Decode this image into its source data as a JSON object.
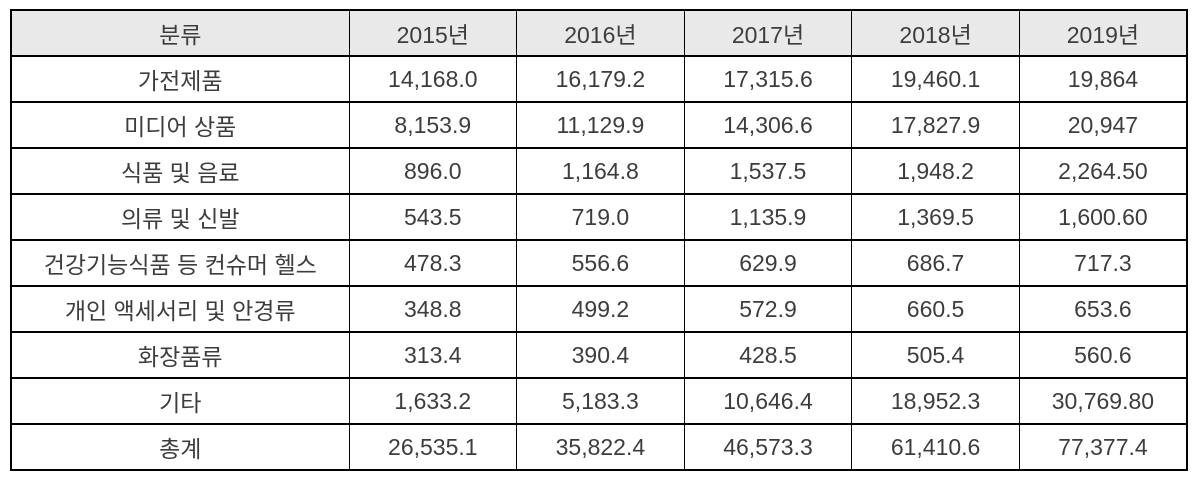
{
  "colors": {
    "header_bg": "#e9e9e9",
    "grid_border": "#000000",
    "text": "#3d3d3d",
    "page_bg": "#ffffff"
  },
  "table": {
    "header": [
      "분류",
      "2015년",
      "2016년",
      "2017년",
      "2018년",
      "2019년"
    ],
    "rows": [
      [
        "가전제품",
        "14,168.0",
        "16,179.2",
        "17,315.6",
        "19,460.1",
        "19,864"
      ],
      [
        "미디어 상품",
        "8,153.9",
        "11,129.9",
        "14,306.6",
        "17,827.9",
        "20,947"
      ],
      [
        "식품 및 음료",
        "896.0",
        "1,164.8",
        "1,537.5",
        "1,948.2",
        "2,264.50"
      ],
      [
        "의류 및 신발",
        "543.5",
        "719.0",
        "1,135.9",
        "1,369.5",
        "1,600.60"
      ],
      [
        "건강기능식품 등 컨슈머 헬스",
        "478.3",
        "556.6",
        "629.9",
        "686.7",
        "717.3"
      ],
      [
        "개인 액세서리 및 안경류",
        "348.8",
        "499.2",
        "572.9",
        "660.5",
        "653.6"
      ],
      [
        "화장품류",
        "313.4",
        "390.4",
        "428.5",
        "505.4",
        "560.6"
      ],
      [
        "기타",
        "1,633.2",
        "5,183.3",
        "10,646.4",
        "18,952.3",
        "30,769.80"
      ],
      [
        "총계",
        "26,535.1",
        "35,822.4",
        "46,573.3",
        "61,410.6",
        "77,377.4"
      ]
    ]
  },
  "chart_data": {
    "type": "table",
    "title": "",
    "row_label_header": "분류",
    "categories": [
      "가전제품",
      "미디어 상품",
      "식품 및 음료",
      "의류 및 신발",
      "건강기능식품 등 컨슈머 헬스",
      "개인 액세서리 및 안경류",
      "화장품류",
      "기타",
      "총계"
    ],
    "series": [
      {
        "name": "2015년",
        "values": [
          14168.0,
          8153.9,
          896.0,
          543.5,
          478.3,
          348.8,
          313.4,
          1633.2,
          26535.1
        ]
      },
      {
        "name": "2016년",
        "values": [
          16179.2,
          11129.9,
          1164.8,
          719.0,
          556.6,
          499.2,
          390.4,
          5183.3,
          35822.4
        ]
      },
      {
        "name": "2017년",
        "values": [
          17315.6,
          14306.6,
          1537.5,
          1135.9,
          629.9,
          572.9,
          428.5,
          10646.4,
          46573.3
        ]
      },
      {
        "name": "2018년",
        "values": [
          19460.1,
          17827.9,
          1948.2,
          1369.5,
          686.7,
          660.5,
          505.4,
          18952.3,
          61410.6
        ]
      },
      {
        "name": "2019년",
        "values": [
          19864,
          20947,
          2264.5,
          1600.6,
          717.3,
          653.6,
          560.6,
          30769.8,
          77377.4
        ]
      }
    ]
  }
}
